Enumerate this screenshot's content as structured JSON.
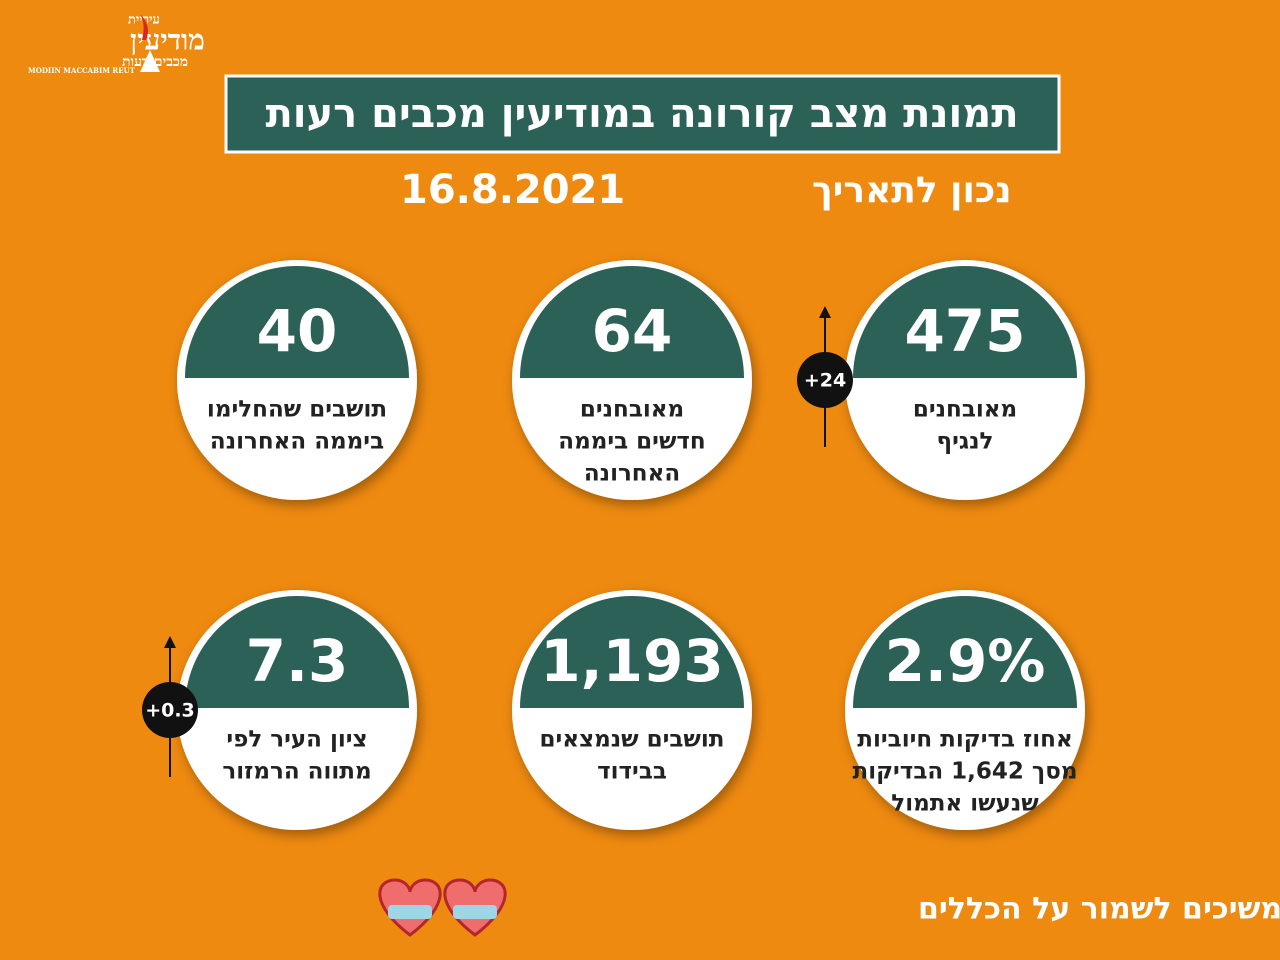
{
  "logo": {
    "city": "עיריית",
    "name": "מודיעין",
    "sub": "מכבים רעות",
    "latin": "MODIIN MACCABIM REUT"
  },
  "header": {
    "title": "תמונת מצב קורונה במודיעין מכבים רעות",
    "date_label": "נכון לתאריך",
    "date": "16.8.2021"
  },
  "cards": [
    {
      "value": "475",
      "label": [
        "מאובחנים",
        "לנגיף"
      ],
      "badge": "+24"
    },
    {
      "value": "64",
      "label": [
        "מאובחנים",
        "חדשים ביממה",
        "האחרונה"
      ]
    },
    {
      "value": "40",
      "label": [
        "תושבים שהחלימו",
        "ביממה האחרונה"
      ]
    },
    {
      "value": "2.9%",
      "label": [
        "אחוז בדיקות חיוביות",
        "מסך 1,642 הבדיקות",
        "שנעשו אתמול"
      ]
    },
    {
      "value": "1,193",
      "label": [
        "תושבים שנמצאים",
        "בבידוד"
      ]
    },
    {
      "value": "7.3",
      "label": [
        "ציון העיר לפי",
        "מתווה הרמזור"
      ],
      "badge": "+0.3"
    }
  ],
  "footer": {
    "text": "ממשיכים לשמור על הכללים"
  }
}
